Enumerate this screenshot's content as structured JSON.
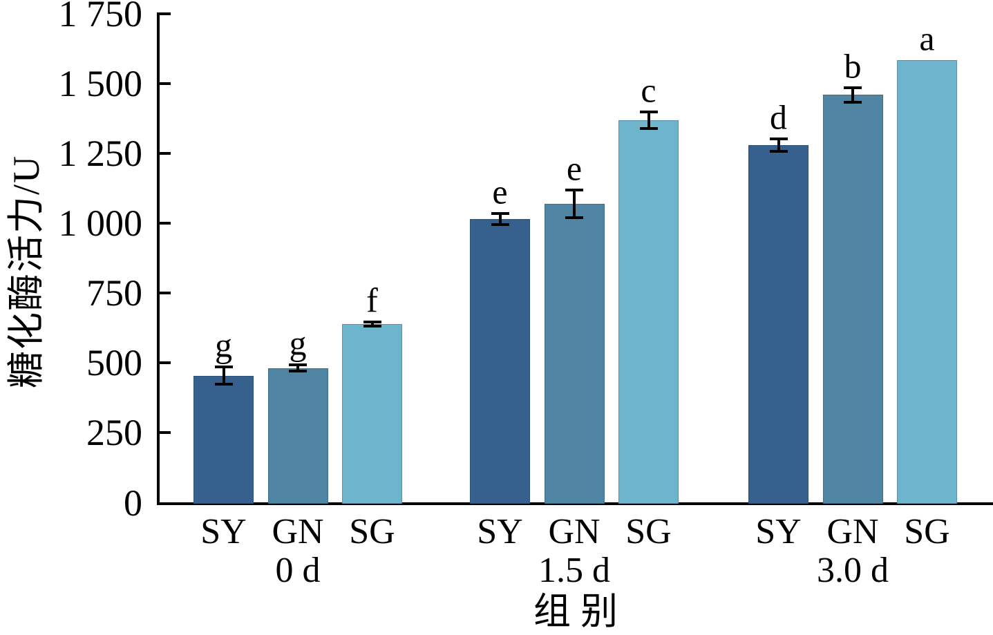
{
  "chart_data": {
    "type": "bar",
    "title": "",
    "ylabel": "糖化酶活力/U",
    "xlabel": "组别",
    "ylim": [
      0,
      1750
    ],
    "yticks": [
      0,
      250,
      500,
      750,
      1000,
      1250,
      1500,
      1750
    ],
    "ytick_labels": [
      "0",
      "250",
      "500",
      "750",
      "1 000",
      "1 250",
      "1 500",
      "1 750"
    ],
    "grid": false,
    "legend_position": "none",
    "series_order": [
      "SY",
      "GN",
      "SG"
    ],
    "series_colors": {
      "SY": "#36618E",
      "GN": "#4F85A3",
      "SG": "#6FB4CD"
    },
    "axis_color": "#000000",
    "groups": [
      {
        "label": "0 d",
        "bars": [
          {
            "series": "SY",
            "value": 455,
            "error": 30,
            "letter": "g"
          },
          {
            "series": "GN",
            "value": 482,
            "error": 12,
            "letter": "g"
          },
          {
            "series": "SG",
            "value": 640,
            "error": 8,
            "letter": "f"
          }
        ]
      },
      {
        "label": "1.5 d",
        "bars": [
          {
            "series": "SY",
            "value": 1015,
            "error": 20,
            "letter": "e"
          },
          {
            "series": "GN",
            "value": 1070,
            "error": 50,
            "letter": "e"
          },
          {
            "series": "SG",
            "value": 1370,
            "error": 30,
            "letter": "c"
          }
        ]
      },
      {
        "label": "3.0 d",
        "bars": [
          {
            "series": "SY",
            "value": 1280,
            "error": 22,
            "letter": "d"
          },
          {
            "series": "GN",
            "value": 1460,
            "error": 26,
            "letter": "b"
          },
          {
            "series": "SG",
            "value": 1585,
            "error": 0,
            "letter": "a"
          }
        ]
      }
    ]
  }
}
